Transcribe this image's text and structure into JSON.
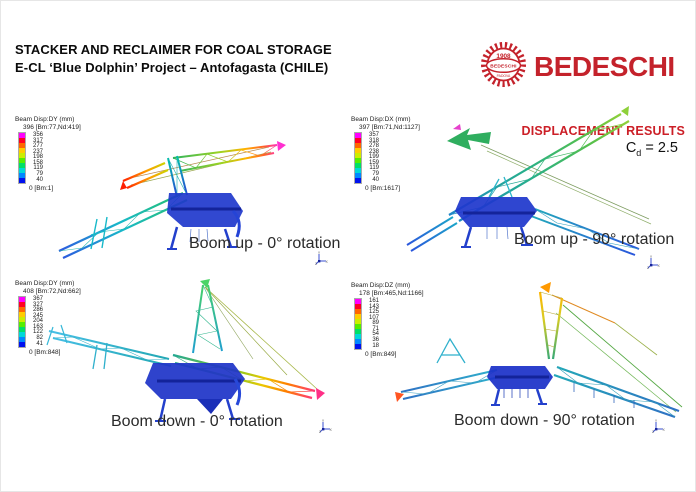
{
  "header": {
    "title_line1": "STACKER AND RECLAIMER FOR COAL STORAGE",
    "title_line2": "E-CL ‘Blue Dolphin’ Project – Antofagasta (CHILE)",
    "logo": {
      "year": "1908",
      "emblem_name": "BEDESCHI",
      "city": "PADOVA",
      "wordmark": "BEDESCHI",
      "brand_color": "#c4222b"
    }
  },
  "results": {
    "heading": "DISPLACEMENT RESULTS",
    "heading_color": "#cc1f27",
    "cd_prefix": "C",
    "cd_sub": "d",
    "cd_suffix": " = 2.5"
  },
  "legend_colors": [
    "#ff00ff",
    "#ff0022",
    "#ff6600",
    "#ffcc00",
    "#ccee00",
    "#55ee00",
    "#00e066",
    "#00d8d8",
    "#0088ff",
    "#0011ee"
  ],
  "panels": [
    {
      "id": "boom-up-0",
      "legend_title": "Beam Disp:DY  (mm)",
      "max_label": "396 [Bm:77,Nd:419]",
      "ticks": [
        "356",
        "317",
        "277",
        "237",
        "198",
        "158",
        "119",
        "79",
        "40"
      ],
      "min_label": "0 [Bm:1]",
      "caption": "Boom up - 0° rotation"
    },
    {
      "id": "boom-up-90",
      "legend_title": "Beam Disp:DX  (mm)",
      "max_label": "397 [Bm:71,Nd:1127]",
      "ticks": [
        "357",
        "318",
        "278",
        "238",
        "199",
        "159",
        "119",
        "79",
        "40"
      ],
      "min_label": "0 [Bm:1617]",
      "caption": "Boom up - 90° rotation"
    },
    {
      "id": "boom-down-0",
      "legend_title": "Beam Disp:DY  (mm)",
      "max_label": "408 [Bm:72,Nd:662]",
      "ticks": [
        "367",
        "327",
        "286",
        "245",
        "204",
        "163",
        "122",
        "82",
        "41"
      ],
      "min_label": "0 [Bm:848]",
      "caption": "Boom down - 0° rotation"
    },
    {
      "id": "boom-down-90",
      "legend_title": "Beam Disp:DZ  (mm)",
      "max_label": "178 [Bm:465,Nd:1166]",
      "ticks": [
        "161",
        "143",
        "125",
        "107",
        "89",
        "71",
        "54",
        "36",
        "18"
      ],
      "min_label": "0 [Bm:849]",
      "caption": "Boom down - 90° rotation"
    }
  ]
}
